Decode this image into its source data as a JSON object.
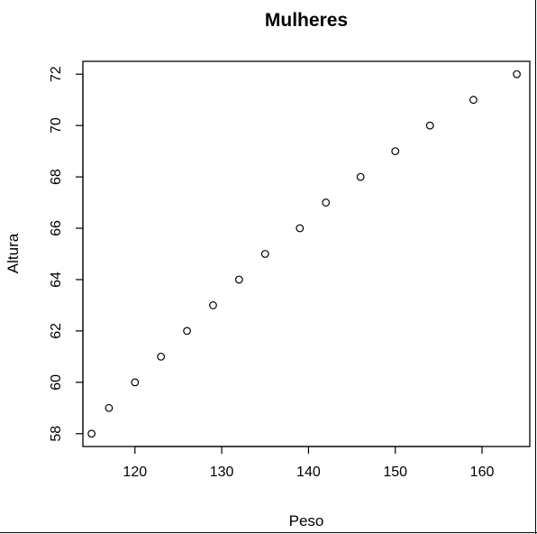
{
  "chart_data": {
    "type": "scatter",
    "title": "Mulheres",
    "xlabel": "Peso",
    "ylabel": "Altura",
    "xlim": [
      114.0,
      165.5
    ],
    "ylim": [
      57.5,
      72.5
    ],
    "xticks": [
      120,
      130,
      140,
      150,
      160
    ],
    "yticks": [
      58,
      60,
      62,
      64,
      66,
      68,
      70,
      72
    ],
    "grid": false,
    "legend": "none",
    "series": [
      {
        "name": "Mulheres",
        "x": [
          115,
          117,
          120,
          123,
          126,
          129,
          132,
          135,
          139,
          142,
          146,
          150,
          154,
          159,
          164
        ],
        "y": [
          58,
          59,
          60,
          61,
          62,
          63,
          64,
          65,
          66,
          67,
          68,
          69,
          70,
          71,
          72
        ]
      }
    ]
  }
}
